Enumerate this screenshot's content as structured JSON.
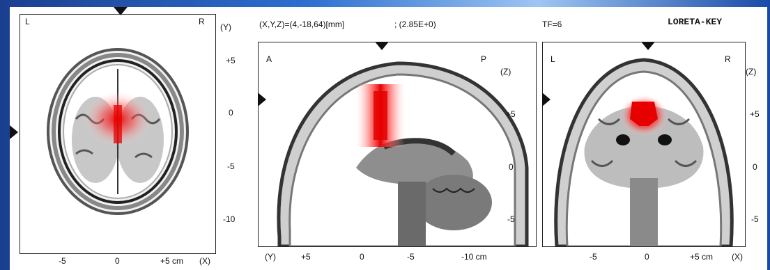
{
  "header": {
    "coordinates": "(X,Y,Z)=(4,-18,64)[mm]",
    "value": "; (2.85E+0)",
    "tf": "TF=6",
    "software": "LORETA-KEY"
  },
  "axial": {
    "left": "L",
    "right": "R",
    "axis_right": "(Y)",
    "y_ticks": [
      "+5",
      "0",
      "-5",
      "-10"
    ],
    "x_ticks": [
      "-5",
      "0",
      "+5 cm"
    ],
    "axis_bottom": "(X)"
  },
  "sagittal": {
    "left": "A",
    "right": "P",
    "axis_right": "(Z)",
    "z_ticks": [
      "+5",
      "0",
      "-5"
    ],
    "axis_bottom_left": "(Y)",
    "x_ticks": [
      "+5",
      "0",
      "-5",
      "-10 cm"
    ]
  },
  "coronal": {
    "left": "L",
    "right": "R",
    "axis_right": "(Z)",
    "z_ticks": [
      "+5",
      "0",
      "-5"
    ],
    "x_ticks": [
      "-5",
      "0",
      "+5 cm"
    ],
    "axis_bottom": "(X)"
  },
  "colors": {
    "activation": "#e60000",
    "frame_blue": "#2d6fd0"
  }
}
